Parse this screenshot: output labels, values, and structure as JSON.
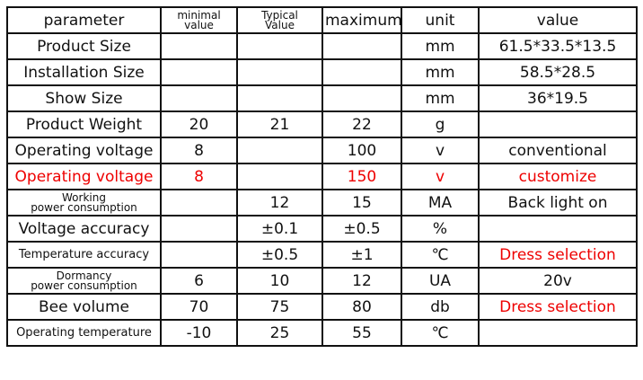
{
  "table": {
    "header": [
      "parameter",
      "minimal\nvalue",
      "Typical\nValue",
      "maximum",
      "unit",
      "value"
    ],
    "rows": [
      [
        "Product Size",
        null,
        null,
        null,
        "mm",
        "61.5*33.5*13.5"
      ],
      [
        "Installation Size",
        null,
        null,
        null,
        "mm",
        "58.5*28.5"
      ],
      [
        "Show Size",
        null,
        null,
        null,
        "mm",
        "36*19.5"
      ],
      [
        "Product Weight",
        "20",
        "21",
        "22",
        "g",
        null
      ],
      [
        "Operating voltage",
        "8",
        null,
        "100",
        "v",
        "conventional"
      ],
      [
        "Operating voltage",
        "8",
        null,
        "150",
        "v",
        "customize"
      ],
      [
        "Working\npower consumption",
        null,
        "12",
        "15",
        "MA",
        "Back light on"
      ],
      [
        "Voltage accuracy",
        null,
        "±0.1",
        "±0.5",
        "%",
        null
      ],
      [
        "Temperature accuracy",
        null,
        "±0.5",
        "±1",
        "℃",
        "Dress selection"
      ],
      [
        "Dormancy\npower consumption",
        "6",
        "10",
        "12",
        "UA",
        "20v"
      ],
      [
        "Bee volume",
        "70",
        "75",
        "80",
        "db",
        "Dress selection"
      ],
      [
        "Operating temperature",
        "-10",
        "25",
        "55",
        "℃",
        null
      ]
    ]
  }
}
